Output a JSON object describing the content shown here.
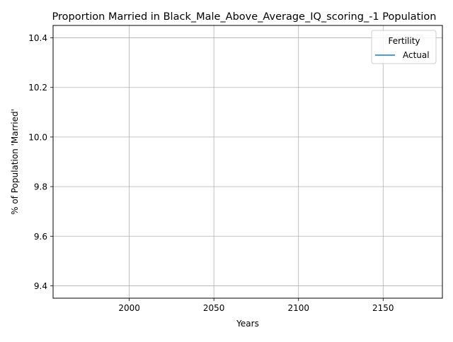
{
  "chart_data": {
    "type": "line",
    "title": "Proportion Married in Black_Male_Above_Average_IQ_scoring_-1 Population",
    "xlabel": "Years",
    "ylabel": "% of Population 'Married'",
    "xlim": [
      1955,
      2185
    ],
    "ylim": [
      9.35,
      10.45
    ],
    "x_ticks": [
      2000,
      2050,
      2100,
      2150
    ],
    "x_tick_labels": [
      "2000",
      "2050",
      "2100",
      "2150"
    ],
    "y_ticks": [
      9.4,
      9.6,
      9.8,
      10.0,
      10.2,
      10.4
    ],
    "y_tick_labels": [
      "9.4",
      "9.6",
      "9.8",
      "10.0",
      "10.2",
      "10.4"
    ],
    "grid": true,
    "legend": {
      "title": "Fertility",
      "placement": "top-right",
      "entries": [
        "Actual"
      ]
    },
    "series": [
      {
        "name": "Actual",
        "color": "#1f77b4",
        "x": [],
        "y": []
      }
    ]
  }
}
